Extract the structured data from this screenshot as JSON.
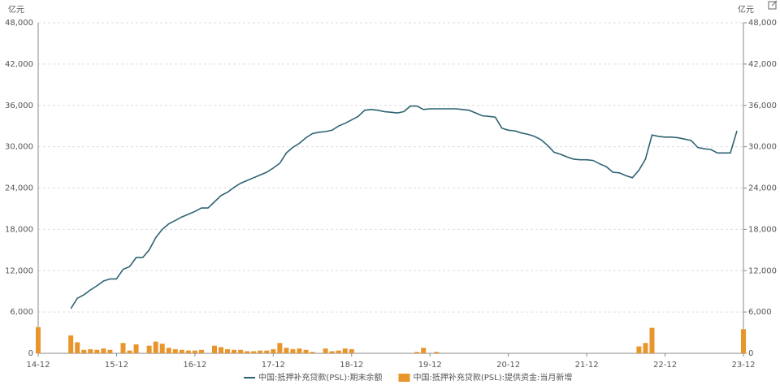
{
  "chart_data": {
    "type": "bar-line",
    "y_unit": "亿元",
    "y2_unit": "亿元",
    "categories": [
      "14-12",
      null,
      null,
      null,
      null,
      null,
      null,
      null,
      null,
      null,
      null,
      null,
      "15-12",
      null,
      null,
      null,
      null,
      null,
      null,
      null,
      null,
      null,
      null,
      null,
      "16-12",
      null,
      null,
      null,
      null,
      null,
      null,
      null,
      null,
      null,
      null,
      null,
      "17-12",
      null,
      null,
      null,
      null,
      null,
      null,
      null,
      null,
      null,
      null,
      null,
      "18-12",
      null,
      null,
      null,
      null,
      null,
      null,
      null,
      null,
      null,
      null,
      null,
      "19-12",
      null,
      null,
      null,
      null,
      null,
      null,
      null,
      null,
      null,
      null,
      null,
      "20-12",
      null,
      null,
      null,
      null,
      null,
      null,
      null,
      null,
      null,
      null,
      null,
      "21-12",
      null,
      null,
      null,
      null,
      null,
      null,
      null,
      null,
      null,
      null,
      null,
      "22-12",
      null,
      null,
      null,
      null,
      null,
      null,
      null,
      null,
      null,
      null,
      null,
      "23-12"
    ],
    "series": [
      {
        "name": "中国:抵押补充贷款(PSL):期末余额",
        "kind": "line",
        "color": "#2e6373",
        "values": [
          null,
          null,
          null,
          null,
          null,
          6500,
          8000,
          8500,
          9200,
          9800,
          10500,
          10800,
          10800,
          12200,
          12600,
          13900,
          13900,
          15000,
          16800,
          18000,
          18800,
          19300,
          19800,
          20200,
          20600,
          21100,
          21100,
          22000,
          22900,
          23400,
          24100,
          24700,
          25100,
          25500,
          25900,
          26300,
          26900,
          27600,
          29100,
          29900,
          30500,
          31300,
          31900,
          32100,
          32200,
          32400,
          33000,
          33400,
          33900,
          34400,
          35300,
          35400,
          35300,
          35100,
          35000,
          34900,
          35100,
          35900,
          35900,
          35400,
          35500,
          35500,
          35500,
          35500,
          35500,
          35400,
          35300,
          34900,
          34500,
          34400,
          34300,
          32700,
          32400,
          32300,
          32000,
          31800,
          31500,
          31000,
          30200,
          29200,
          28900,
          28500,
          28200,
          28100,
          28100,
          28000,
          27500,
          27100,
          26300,
          26200,
          25800,
          25500,
          26600,
          28200,
          31700,
          31500,
          31400,
          31400,
          31300,
          31100,
          30900,
          29900,
          29700,
          29600,
          29100,
          29100,
          29100,
          32300,
          null
        ]
      },
      {
        "name": "中国:抵押补充贷款(PSL):提供资金:当月新增",
        "kind": "bar",
        "axis": "y2",
        "color": "#e8952c",
        "values": [
          3800,
          0,
          0,
          0,
          0,
          2600,
          1600,
          500,
          600,
          500,
          700,
          500,
          0,
          1500,
          400,
          1300,
          0,
          1100,
          1700,
          1400,
          800,
          600,
          500,
          400,
          400,
          500,
          0,
          1100,
          900,
          600,
          500,
          500,
          300,
          300,
          400,
          400,
          600,
          1500,
          800,
          600,
          700,
          500,
          200,
          0,
          700,
          300,
          400,
          700,
          600,
          0,
          0,
          0,
          0,
          0,
          0,
          0,
          0,
          0,
          200,
          800,
          0,
          200,
          0,
          0,
          0,
          0,
          0,
          0,
          0,
          0,
          0,
          0,
          0,
          0,
          0,
          0,
          0,
          0,
          0,
          0,
          0,
          0,
          0,
          0,
          0,
          0,
          0,
          0,
          0,
          0,
          0,
          0,
          1000,
          1500,
          3700,
          0,
          0,
          0,
          0,
          0,
          0,
          0,
          0,
          0,
          0,
          0,
          0,
          0,
          3500
        ]
      }
    ],
    "ylim": [
      0,
      48000
    ],
    "yticks": [
      0,
      {
        "value": 6000,
        "label": "6,000"
      },
      {
        "value": 12000,
        "label": "12,000"
      },
      {
        "value": 18000,
        "label": "18,000"
      },
      {
        "value": 24000,
        "label": "24,000"
      },
      {
        "value": 30000,
        "label": "30,000"
      },
      {
        "value": 36000,
        "label": "36,000"
      },
      {
        "value": 42000,
        "label": "42,000"
      },
      {
        "value": 48000,
        "label": "48,000"
      }
    ],
    "y2lim": [
      0,
      48000
    ],
    "y2ticks": [
      0,
      {
        "value": 6000,
        "label": "6,000"
      },
      {
        "value": 12000,
        "label": "12,000"
      },
      {
        "value": 18000,
        "label": "18,000"
      },
      {
        "value": 24000,
        "label": "24,000"
      },
      {
        "value": 30000,
        "label": "30,000"
      },
      {
        "value": 36000,
        "label": "36,000"
      },
      {
        "value": 42000,
        "label": "42,000"
      },
      {
        "value": 48000,
        "label": "48,000"
      }
    ],
    "grid": true
  }
}
